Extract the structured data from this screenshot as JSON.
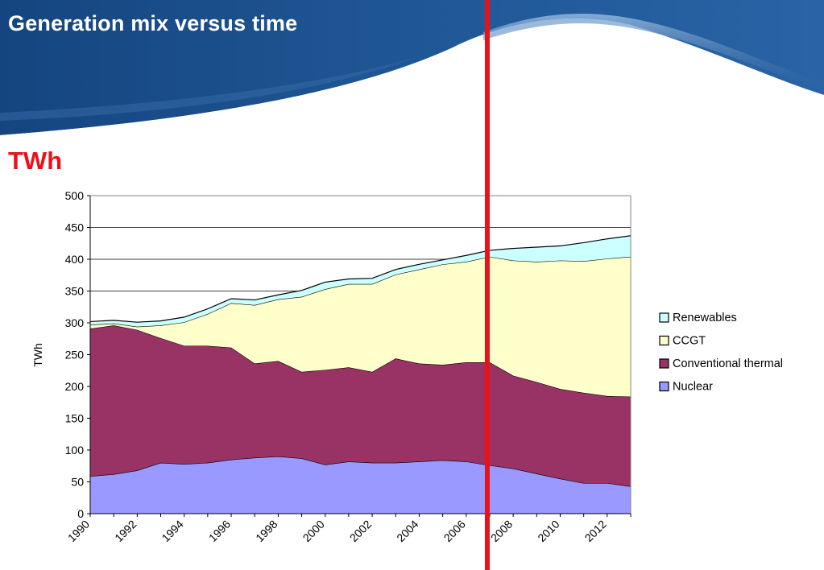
{
  "slide": {
    "title": "Generation mix versus time",
    "unit_label": "TWh"
  },
  "colors": {
    "banner_dark": "#123a6e",
    "banner_mid": "#1e5799",
    "marker_line": "#e8121a"
  },
  "chart_data": {
    "type": "area",
    "stacked": true,
    "x": [
      1990,
      1991,
      1992,
      1993,
      1994,
      1995,
      1996,
      1997,
      1998,
      1999,
      2000,
      2001,
      2002,
      2003,
      2004,
      2005,
      2006,
      2007,
      2008,
      2009,
      2010,
      2011,
      2012,
      2013
    ],
    "ylabel": "TWh",
    "ylim": [
      0,
      500
    ],
    "yticks": [
      0,
      50,
      100,
      150,
      200,
      250,
      300,
      350,
      400,
      450,
      500
    ],
    "xticks": [
      1990,
      1992,
      1994,
      1996,
      1998,
      2000,
      2002,
      2004,
      2006,
      2008,
      2010,
      2012
    ],
    "grid": true,
    "legend_position": "right",
    "marker_year": 2007,
    "series": [
      {
        "name": "Nuclear",
        "color": "#9999ff",
        "values": [
          59,
          62,
          68,
          80,
          78,
          80,
          85,
          88,
          90,
          87,
          77,
          82,
          80,
          80,
          82,
          84,
          82,
          76,
          71,
          63,
          55,
          48,
          48,
          43
        ]
      },
      {
        "name": "Conventional thermal",
        "color": "#993366",
        "values": [
          232,
          234,
          221,
          196,
          186,
          184,
          176,
          148,
          150,
          136,
          149,
          148,
          143,
          164,
          154,
          150,
          156,
          162,
          146,
          144,
          141,
          142,
          137,
          141
        ]
      },
      {
        "name": "CCGT",
        "color": "#ffffcc",
        "values": [
          6,
          3,
          5,
          20,
          37,
          50,
          70,
          92,
          97,
          118,
          127,
          131,
          138,
          132,
          148,
          158,
          158,
          166,
          181,
          189,
          202,
          207,
          216,
          220
        ]
      },
      {
        "name": "Renewables",
        "color": "#ccffff",
        "values": [
          5,
          5,
          7,
          7,
          8,
          8,
          7,
          8,
          7,
          10,
          11,
          8,
          9,
          8,
          8,
          7,
          10,
          10,
          19,
          23,
          23,
          29,
          31,
          33
        ]
      }
    ],
    "legend_order": [
      "Renewables",
      "CCGT",
      "Conventional thermal",
      "Nuclear"
    ]
  }
}
